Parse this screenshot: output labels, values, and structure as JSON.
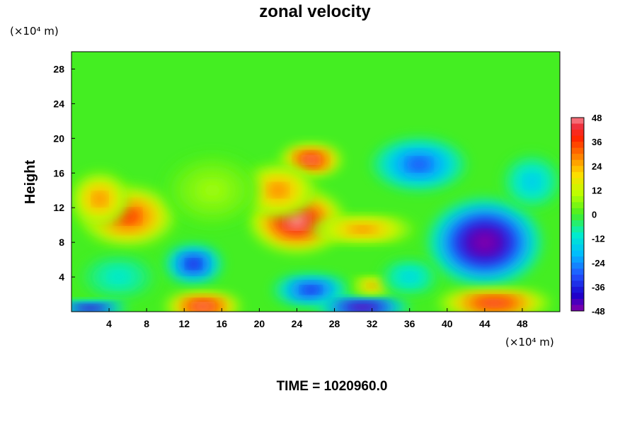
{
  "chart_data": {
    "type": "heatmap",
    "title": "zonal velocity",
    "ylabel": "Height",
    "xlabel": "",
    "x_unit": "(×10⁴ m)",
    "y_unit": "(×10⁴ m)",
    "xlim": [
      0,
      52
    ],
    "ylim": [
      0,
      30
    ],
    "x_ticks": [
      "4",
      "8",
      "12",
      "16",
      "20",
      "24",
      "28",
      "32",
      "36",
      "40",
      "44",
      "48"
    ],
    "y_ticks": [
      "4",
      "8",
      "12",
      "16",
      "20",
      "24",
      "28"
    ],
    "colorbar": {
      "min": -48,
      "max": 48,
      "tick_labels": [
        "48",
        "36",
        "24",
        "12",
        "0",
        "-12",
        "-24",
        "-36",
        "-48"
      ]
    },
    "background_value": 0,
    "features": [
      {
        "x": 6,
        "y": 11,
        "rx": 5,
        "ry": 3.4,
        "value": 38
      },
      {
        "x": 3,
        "y": 13,
        "rx": 3,
        "ry": 3,
        "value": 30
      },
      {
        "x": 24,
        "y": 10.5,
        "rx": 5,
        "ry": 3.6,
        "value": 52
      },
      {
        "x": 25.5,
        "y": 17.5,
        "rx": 3.2,
        "ry": 1.8,
        "value": 50
      },
      {
        "x": 22,
        "y": 14,
        "rx": 4,
        "ry": 3,
        "value": 30
      },
      {
        "x": 31,
        "y": 9.5,
        "rx": 5.5,
        "ry": 1.6,
        "value": 30
      },
      {
        "x": 15,
        "y": 14,
        "rx": 5,
        "ry": 4,
        "value": 8
      },
      {
        "x": 44,
        "y": 8,
        "rx": 6,
        "ry": 5,
        "value": -55
      },
      {
        "x": 37,
        "y": 17,
        "rx": 5,
        "ry": 3,
        "value": -32
      },
      {
        "x": 13,
        "y": 5.5,
        "rx": 3,
        "ry": 2.2,
        "value": -40
      },
      {
        "x": 25.5,
        "y": 2.5,
        "rx": 4,
        "ry": 1.8,
        "value": -38
      },
      {
        "x": 31,
        "y": 0.5,
        "rx": 5,
        "ry": 1.2,
        "value": -55
      },
      {
        "x": 14,
        "y": 0.6,
        "rx": 4,
        "ry": 1.6,
        "value": 50
      },
      {
        "x": 45,
        "y": 1,
        "rx": 6,
        "ry": 1.6,
        "value": 46
      },
      {
        "x": 32,
        "y": 3,
        "rx": 2,
        "ry": 1,
        "value": 30
      },
      {
        "x": 5,
        "y": 4,
        "rx": 4,
        "ry": 2.5,
        "value": -12
      },
      {
        "x": 36,
        "y": 4,
        "rx": 3,
        "ry": 2,
        "value": -16
      },
      {
        "x": 2,
        "y": 0.4,
        "rx": 4,
        "ry": 0.8,
        "value": -52
      },
      {
        "x": 49,
        "y": 15,
        "rx": 3,
        "ry": 3,
        "value": -18
      }
    ],
    "footer": "TIME = 1020960.0"
  }
}
